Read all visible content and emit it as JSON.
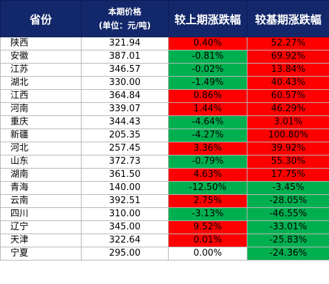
{
  "colors": {
    "header_bg": "#13286b",
    "up": "#ff0000",
    "down": "#00b050",
    "flat": "#ffffff"
  },
  "header": {
    "province": "省份",
    "price_line1": "本期价格",
    "price_line2": "(单位：元/吨)",
    "mom": "较上期涨跌幅",
    "yoy": "较基期涨跌幅"
  },
  "rows": [
    {
      "province": "陕西",
      "price": "321.94",
      "mom": "0.40%",
      "mom_color": "red",
      "yoy": "52.27%",
      "yoy_color": "red"
    },
    {
      "province": "安徽",
      "price": "387.01",
      "mom": "-0.81%",
      "mom_color": "green",
      "yoy": "69.92%",
      "yoy_color": "red"
    },
    {
      "province": "江苏",
      "price": "346.57",
      "mom": "-0.02%",
      "mom_color": "green",
      "yoy": "13.84%",
      "yoy_color": "red"
    },
    {
      "province": "湖北",
      "price": "330.00",
      "mom": "-1.49%",
      "mom_color": "green",
      "yoy": "40.43%",
      "yoy_color": "red"
    },
    {
      "province": "江西",
      "price": "364.84",
      "mom": "0.86%",
      "mom_color": "red",
      "yoy": "60.57%",
      "yoy_color": "red"
    },
    {
      "province": "河南",
      "price": "339.07",
      "mom": "1.44%",
      "mom_color": "red",
      "yoy": "46.29%",
      "yoy_color": "red"
    },
    {
      "province": "重庆",
      "price": "344.43",
      "mom": "-4.64%",
      "mom_color": "green",
      "yoy": "3.01%",
      "yoy_color": "red"
    },
    {
      "province": "新疆",
      "price": "205.35",
      "mom": "-4.27%",
      "mom_color": "green",
      "yoy": "100.80%",
      "yoy_color": "red"
    },
    {
      "province": "河北",
      "price": "257.45",
      "mom": "3.36%",
      "mom_color": "red",
      "yoy": "39.92%",
      "yoy_color": "red"
    },
    {
      "province": "山东",
      "price": "372.73",
      "mom": "-0.79%",
      "mom_color": "green",
      "yoy": "55.30%",
      "yoy_color": "red"
    },
    {
      "province": "湖南",
      "price": "361.50",
      "mom": "4.63%",
      "mom_color": "red",
      "yoy": "17.75%",
      "yoy_color": "red"
    },
    {
      "province": "青海",
      "price": "140.00",
      "mom": "-12.50%",
      "mom_color": "green",
      "yoy": "-3.45%",
      "yoy_color": "green"
    },
    {
      "province": "云南",
      "price": "392.51",
      "mom": "2.75%",
      "mom_color": "red",
      "yoy": "-28.05%",
      "yoy_color": "green"
    },
    {
      "province": "四川",
      "price": "310.00",
      "mom": "-3.13%",
      "mom_color": "green",
      "yoy": "-46.55%",
      "yoy_color": "green"
    },
    {
      "province": "辽宁",
      "price": "345.00",
      "mom": "9.52%",
      "mom_color": "red",
      "yoy": "-33.01%",
      "yoy_color": "green"
    },
    {
      "province": "天津",
      "price": "322.64",
      "mom": "0.01%",
      "mom_color": "red",
      "yoy": "-25.83%",
      "yoy_color": "green"
    },
    {
      "province": "宁夏",
      "price": "295.00",
      "mom": "0.00%",
      "mom_color": "white",
      "yoy": "-24.36%",
      "yoy_color": "green"
    }
  ]
}
